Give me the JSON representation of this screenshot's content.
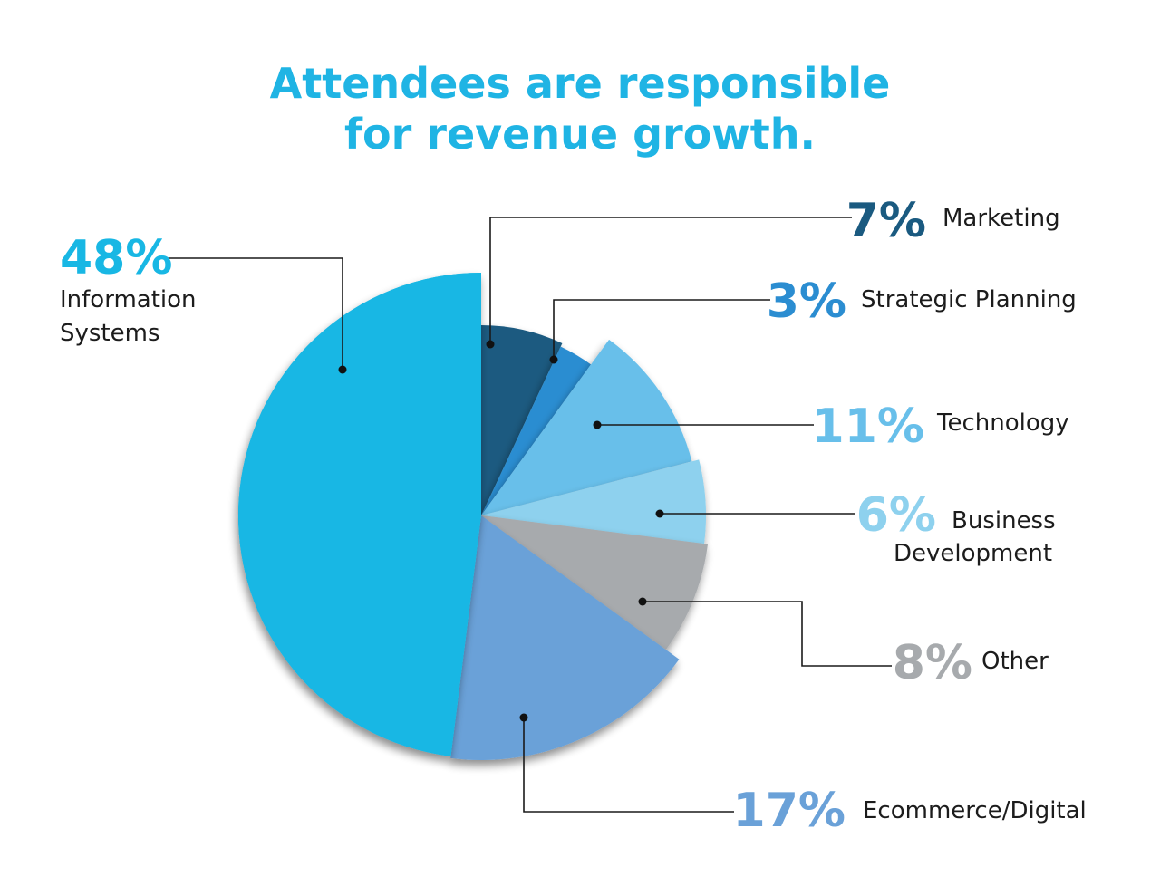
{
  "title_line1": "Attendees are responsible",
  "title_line2": "for revenue growth.",
  "colors": {
    "title": "#1fb4e4",
    "marketing": "#1a5a80",
    "strategic_planning": "#2b8dd1",
    "technology": "#68bfea",
    "business_development": "#8ed1ee",
    "other": "#a7aaad",
    "ecommerce_digital": "#6aa1d8",
    "information_systems": "#18b7e4"
  },
  "chart_data": {
    "type": "pie",
    "title": "Attendees are responsible for revenue growth.",
    "unit": "%",
    "slices": [
      {
        "label": "Marketing",
        "value": 7,
        "display": "7%",
        "color": "#1a5a80"
      },
      {
        "label": "Strategic Planning",
        "value": 3,
        "display": "3%",
        "color": "#2b8dd1"
      },
      {
        "label": "Technology",
        "value": 11,
        "display": "11%",
        "color": "#68bfea"
      },
      {
        "label": "Business Development",
        "value": 6,
        "display": "6%",
        "color": "#8ed1ee"
      },
      {
        "label": "Other",
        "value": 8,
        "display": "8%",
        "color": "#a7aaad"
      },
      {
        "label": "Ecommerce/Digital",
        "value": 17,
        "display": "17%",
        "color": "#6aa1d8"
      },
      {
        "label": "Information Systems",
        "value": 48,
        "display": "48%",
        "color": "#18b7e4"
      }
    ]
  }
}
